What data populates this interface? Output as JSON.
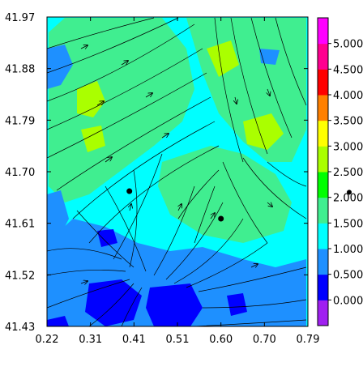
{
  "chart_data": {
    "type": "heatmap",
    "title": "",
    "xlabel": "",
    "ylabel": "",
    "xlim": [
      0.22,
      0.79
    ],
    "ylim": [
      41.43,
      41.97
    ],
    "x_ticks": [
      "0.22",
      "0.31",
      "0.41",
      "0.51",
      "0.60",
      "0.70",
      "0.79"
    ],
    "y_ticks": [
      "41.97",
      "41.88",
      "41.79",
      "41.70",
      "41.61",
      "41.52",
      "41.43"
    ],
    "colorbar": {
      "labels": [
        "0.000",
        "0.500",
        "1.000",
        "1.500",
        "2.000",
        "2.500",
        "3.000",
        "3.500",
        "4.000",
        "4.500",
        "5.000"
      ],
      "colors": [
        "#a020f0",
        "#0000ff",
        "#1e90ff",
        "#00ffff",
        "#40ee90",
        "#00ff00",
        "#aaff00",
        "#ffff00",
        "#ff8000",
        "#ff0000",
        "#ff0090",
        "#ff00ff"
      ],
      "marker_value": 2.1
    },
    "streamlines": true,
    "points": [
      {
        "x": 0.4,
        "y": 41.666
      },
      {
        "x": 0.6,
        "y": 41.618
      }
    ]
  }
}
